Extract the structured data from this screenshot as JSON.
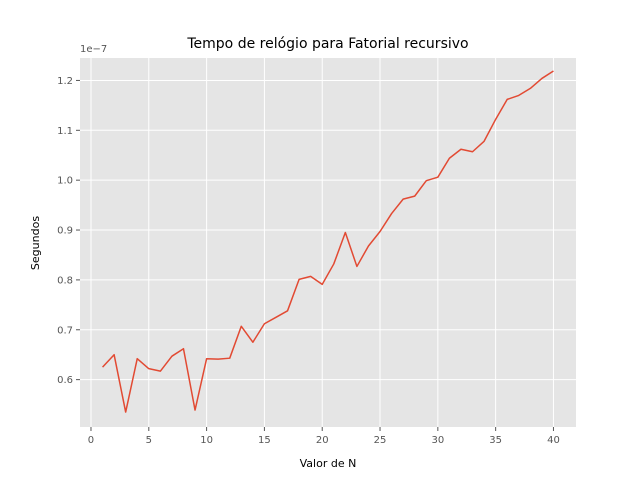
{
  "chart_data": {
    "type": "line",
    "title": "Tempo de relógio para Fatorial recursivo",
    "xlabel": "Valor de N",
    "ylabel": "Segundos",
    "offset_label": "1e−7",
    "xlim": [
      -0.95,
      41.95
    ],
    "ylim": [
      0.505,
      1.245
    ],
    "x_ticks": [
      0,
      5,
      10,
      15,
      20,
      25,
      30,
      35,
      40
    ],
    "y_ticks": [
      0.6,
      0.7,
      0.8,
      0.9,
      1.0,
      1.1,
      1.2
    ],
    "y_tick_labels": [
      "0.6",
      "0.7",
      "0.8",
      "0.9",
      "1.0",
      "1.1",
      "1.2"
    ],
    "grid": true,
    "background": "#e5e5e5",
    "grid_color": "#ffffff",
    "line_color": "#e24a33",
    "series": [
      {
        "x": [
          1,
          2,
          3,
          4,
          5,
          6,
          7,
          8,
          9,
          10,
          11,
          12,
          13,
          14,
          15,
          16,
          17,
          18,
          19,
          20,
          21,
          22,
          23,
          24,
          25,
          26,
          27,
          28,
          29,
          30,
          31,
          32,
          33,
          34,
          35,
          36,
          37,
          38,
          39,
          40
        ],
        "values": [
          0.625,
          0.65,
          0.535,
          0.642,
          0.622,
          0.617,
          0.647,
          0.662,
          0.539,
          0.642,
          0.641,
          0.643,
          0.707,
          0.675,
          0.712,
          0.725,
          0.738,
          0.801,
          0.807,
          0.791,
          0.832,
          0.895,
          0.827,
          0.868,
          0.897,
          0.933,
          0.962,
          0.968,
          0.999,
          1.006,
          1.044,
          1.062,
          1.057,
          1.078,
          1.122,
          1.162,
          1.17,
          1.184,
          1.204,
          1.219
        ]
      }
    ]
  }
}
